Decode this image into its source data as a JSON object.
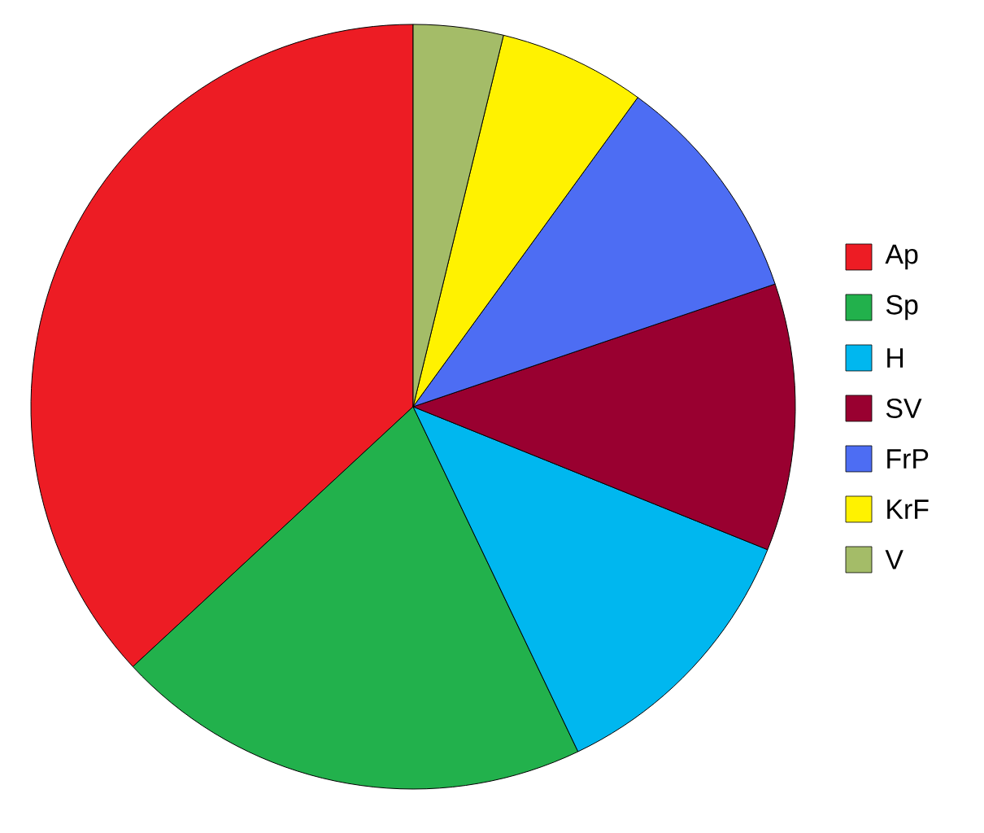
{
  "chart_data": {
    "type": "pie",
    "categories": [
      "Ap",
      "Sp",
      "H",
      "SV",
      "FrP",
      "KrF",
      "V"
    ],
    "values": [
      36.9,
      20.2,
      11.8,
      11.3,
      9.8,
      6.2,
      3.8
    ],
    "colors": [
      "#ed1c24",
      "#22b14c",
      "#00b7ef",
      "#990030",
      "#4d6df3",
      "#fff200",
      "#a4bc68"
    ],
    "legend": "right"
  }
}
